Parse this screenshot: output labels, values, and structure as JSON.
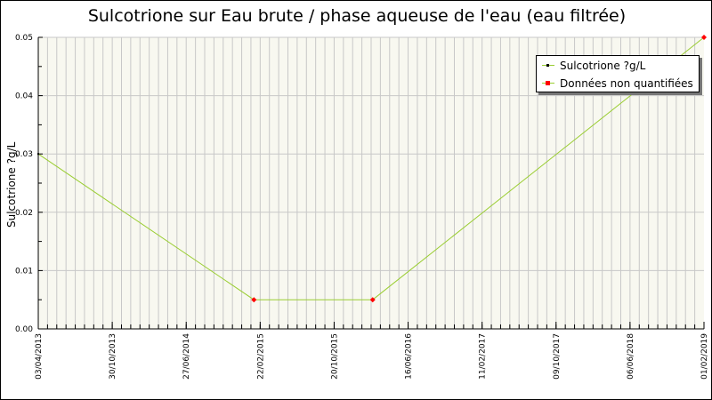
{
  "chart_data": {
    "type": "line",
    "title": "Sulcotrione sur Eau brute / phase aqueuse de l'eau (eau filtrée)",
    "xlabel": "",
    "ylabel": "Sulcotrione ?g/L",
    "x_ticks": [
      "03/04/2013",
      "30/10/2013",
      "27/06/2014",
      "22/02/2015",
      "20/10/2015",
      "16/06/2016",
      "11/02/2017",
      "09/10/2017",
      "06/06/2018",
      "01/02/2019"
    ],
    "xlim": [
      "2013-04-03",
      "2019-02-01"
    ],
    "y_ticks": [
      "0.00",
      "0.01",
      "0.02",
      "0.03",
      "0.04",
      "0.05"
    ],
    "ylim": [
      0,
      0.05
    ],
    "grid": true,
    "legend_placement": "top-right",
    "series": [
      {
        "name": "Sulcotrione ?g/L",
        "color": "#9acd32",
        "points": [
          {
            "x": "2013-04-03",
            "y": 0.03,
            "quantified": true
          },
          {
            "x": "2015-02-22",
            "y": 0.005,
            "quantified": false
          },
          {
            "x": "2016-03-08",
            "y": 0.005,
            "quantified": false
          },
          {
            "x": "2019-02-01",
            "y": 0.05,
            "quantified": false
          }
        ]
      }
    ],
    "legend": [
      {
        "label": "Sulcotrione ?g/L",
        "marker_color": "#000000"
      },
      {
        "label": "Données non quantifiées",
        "marker_color": "#ff0000"
      }
    ],
    "colors": {
      "plot_bg": "#f8f8f0",
      "grid": "#c8c8c8",
      "line": "#9acd32",
      "unquantified": "#ff0000"
    }
  }
}
